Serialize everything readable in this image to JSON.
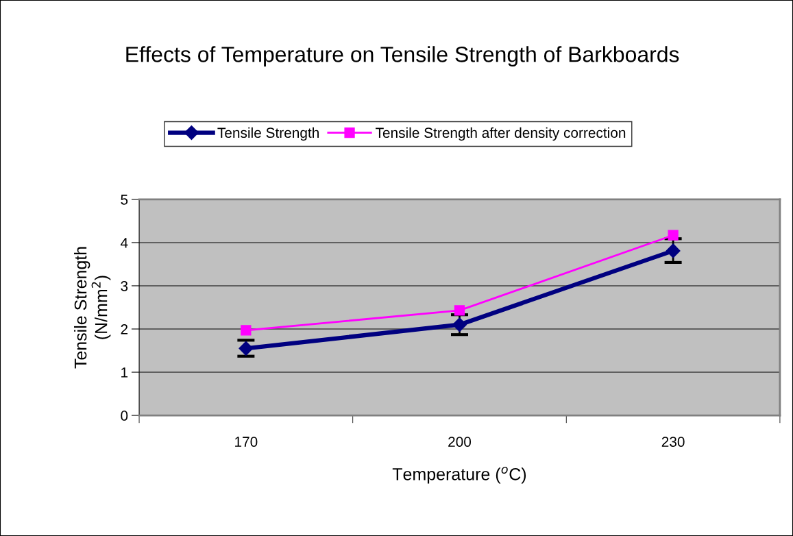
{
  "chart_data": {
    "type": "line",
    "title": "Effects of Temperature on Tensile Strength of Barkboards",
    "xlabel": "Temperature ($^{o}$C)",
    "ylabel": "Tensile Strength\n(N/mm$^{2}$)",
    "categories": [
      "170",
      "200",
      "230"
    ],
    "series": [
      {
        "name": "Tensile Strength",
        "color": "#000080",
        "marker": "diamond",
        "values": [
          1.55,
          2.1,
          3.81
        ],
        "errors": [
          [
            1.37,
            1.74
          ],
          [
            1.87,
            2.33
          ],
          [
            3.54,
            4.09
          ]
        ]
      },
      {
        "name": "Tensile Strength after density correction",
        "color": "#ff00ff",
        "marker": "square",
        "values": [
          1.97,
          2.43,
          4.17
        ]
      }
    ],
    "ylim": [
      0,
      5
    ],
    "yticks": [
      0,
      1,
      2,
      3,
      4,
      5
    ],
    "grid": "y",
    "legend": "top"
  }
}
